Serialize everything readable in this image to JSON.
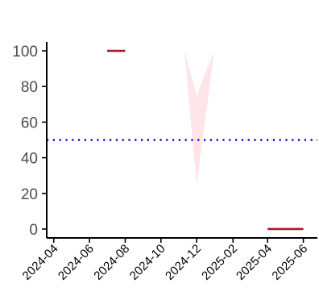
{
  "chart_data": {
    "type": "line",
    "title": "",
    "xlabel": "",
    "ylabel": "",
    "x_type": "date",
    "xlim": [
      "2024-03-20",
      "2025-06-25"
    ],
    "ylim": [
      -5,
      105
    ],
    "x_ticks": [
      "2024-04",
      "2024-06",
      "2024-08",
      "2024-10",
      "2024-12",
      "2025-02",
      "2025-04",
      "2025-06"
    ],
    "y_ticks": [
      0,
      20,
      40,
      60,
      80,
      100
    ],
    "grid": false,
    "legend": "none",
    "segments": [
      {
        "x_start": "2024-07-01",
        "x_end": "2024-08-01",
        "y": 100,
        "color": "#a6192e"
      },
      {
        "x_start": "2025-04-01",
        "x_end": "2025-06-01",
        "y": 0,
        "color": "#a6192e"
      }
    ],
    "band": {
      "color": "#ffe4e8",
      "points": [
        {
          "x": "2024-11-10",
          "ymin": 100,
          "ymax": 100
        },
        {
          "x": "2024-12-01",
          "ymin": 25,
          "ymax": 75
        },
        {
          "x": "2024-12-31",
          "ymin": 100,
          "ymax": 100
        }
      ]
    },
    "reference_line": {
      "y": 50,
      "style": "dotted",
      "color": "#0000ee"
    }
  }
}
